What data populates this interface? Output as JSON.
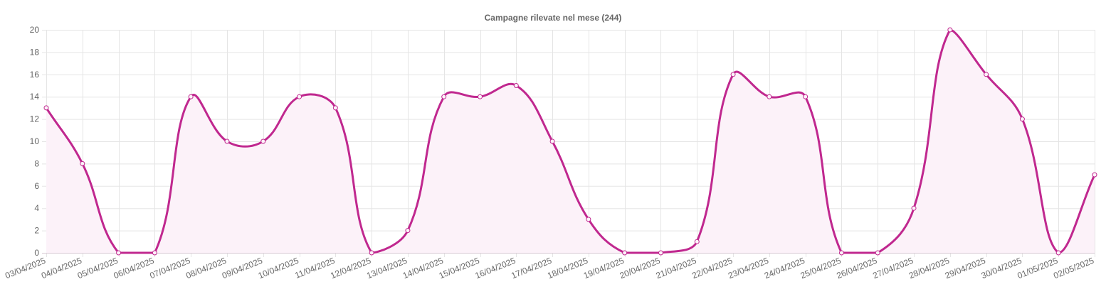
{
  "chart_data": {
    "type": "line",
    "title": "Campagne rilevate nel mese (244)",
    "xlabel": "",
    "ylabel": "",
    "categories": [
      "03/04/2025",
      "04/04/2025",
      "05/04/2025",
      "06/04/2025",
      "07/04/2025",
      "08/04/2025",
      "09/04/2025",
      "10/04/2025",
      "11/04/2025",
      "12/04/2025",
      "13/04/2025",
      "14/04/2025",
      "15/04/2025",
      "16/04/2025",
      "17/04/2025",
      "18/04/2025",
      "19/04/2025",
      "20/04/2025",
      "21/04/2025",
      "22/04/2025",
      "23/04/2025",
      "24/04/2025",
      "25/04/2025",
      "26/04/2025",
      "27/04/2025",
      "28/04/2025",
      "29/04/2025",
      "30/04/2025",
      "01/05/2025",
      "02/05/2025"
    ],
    "series": [
      {
        "values": [
          13,
          8,
          0,
          0,
          14,
          10,
          10,
          14,
          13,
          0,
          2,
          14,
          14,
          15,
          10,
          3,
          0,
          0,
          1,
          16,
          14,
          14,
          0,
          0,
          4,
          20,
          16,
          12,
          0,
          7
        ]
      }
    ],
    "ylim": [
      0,
      20
    ],
    "yticks": [
      0,
      2,
      4,
      6,
      8,
      10,
      12,
      14,
      16,
      18,
      20
    ],
    "grid": true,
    "legend": "none",
    "colors": {
      "line": "#c0288f",
      "fill": "#fcf2f9",
      "grid": "#e5e5e5",
      "text": "#666666"
    }
  }
}
